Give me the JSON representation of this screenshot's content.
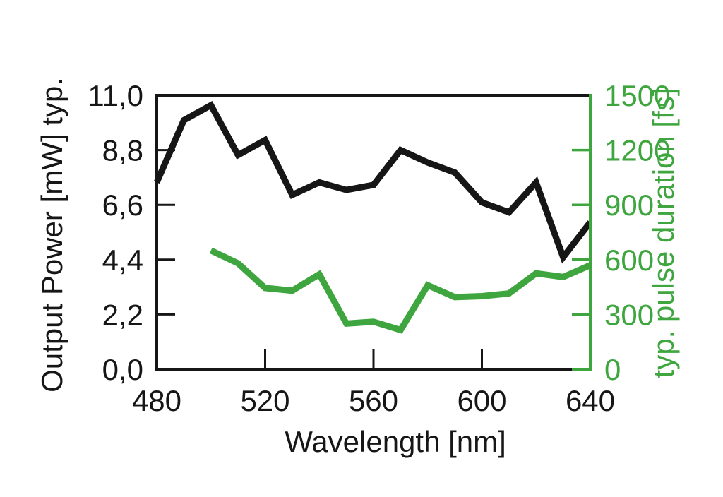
{
  "page": {
    "background_color": "#ffffff"
  },
  "chart_data": {
    "type": "line",
    "title": "",
    "xlabel": "Wavelength [nm]",
    "xlim": [
      480,
      640
    ],
    "x_ticks": [
      480,
      520,
      560,
      600,
      640
    ],
    "grid": false,
    "legend": "none",
    "axes": {
      "left": {
        "label": "Output Power [mW] typ.",
        "color": "#161616",
        "range": [
          0,
          11
        ],
        "tick_values": [
          0,
          2.2,
          4.4,
          6.6,
          8.8,
          11
        ],
        "tick_labels": [
          "0,0",
          "2,2",
          "4,4",
          "6,6",
          "8,8",
          "11,0"
        ]
      },
      "right": {
        "label": "typ. pulse duration [fs]",
        "color": "#3FA63F",
        "range": [
          0,
          1500
        ],
        "tick_values": [
          0,
          300,
          600,
          900,
          1200,
          1500
        ],
        "tick_labels": [
          "0",
          "300",
          "600",
          "900",
          "1200",
          "1500"
        ]
      }
    },
    "series": [
      {
        "name": "Output Power [mW] typ.",
        "axis": "left",
        "color": "#161616",
        "x": [
          480,
          490,
          500,
          510,
          520,
          530,
          540,
          550,
          560,
          570,
          580,
          590,
          600,
          610,
          620,
          630,
          640
        ],
        "values": [
          7.5,
          10.0,
          10.6,
          8.6,
          9.2,
          7.0,
          7.5,
          7.2,
          7.4,
          8.8,
          8.3,
          7.9,
          6.7,
          6.3,
          7.5,
          4.5,
          5.9
        ]
      },
      {
        "name": "typ. pulse duration [fs]",
        "axis": "right",
        "color": "#3FA63F",
        "x": [
          500,
          510,
          520,
          530,
          540,
          550,
          560,
          570,
          580,
          590,
          600,
          610,
          620,
          630,
          640
        ],
        "values": [
          650,
          580,
          445,
          430,
          520,
          250,
          260,
          215,
          460,
          395,
          400,
          415,
          525,
          505,
          570
        ]
      }
    ]
  }
}
